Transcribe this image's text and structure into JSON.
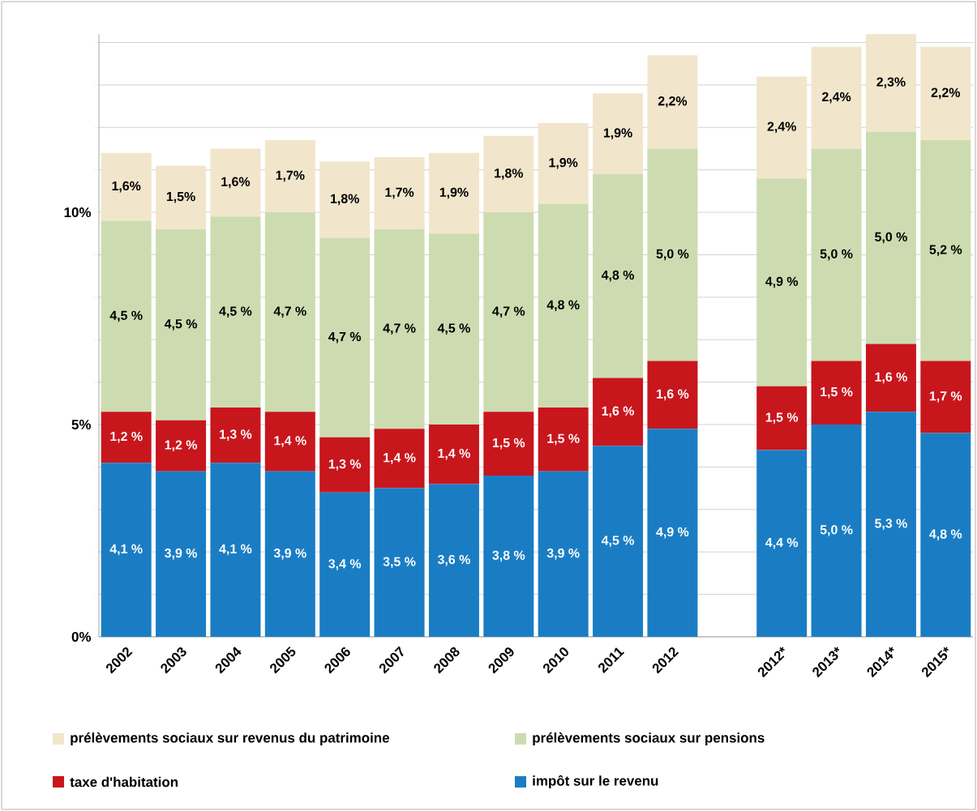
{
  "chart_data": {
    "type": "bar",
    "stacked": true,
    "categories": [
      "2002",
      "2003",
      "2004",
      "2005",
      "2006",
      "2007",
      "2008",
      "2009",
      "2010",
      "2011",
      "2012",
      null,
      "2012*",
      "2013*",
      "2014*",
      "2015*"
    ],
    "series": [
      {
        "name": "impôt sur le revenu",
        "color": "#1a7dc4",
        "values": [
          4.1,
          3.9,
          4.1,
          3.9,
          3.4,
          3.5,
          3.6,
          3.8,
          3.9,
          4.5,
          4.9,
          null,
          4.4,
          5.0,
          5.3,
          4.8
        ],
        "value_labels": [
          "4,1 %",
          "3,9 %",
          "4,1 %",
          "3,9 %",
          "3,4 %",
          "3,5 %",
          "3,6 %",
          "3,8 %",
          "3,9 %",
          "4,5 %",
          "4,9 %",
          null,
          "4,4 %",
          "5,0 %",
          "5,3 %",
          "4,8 %"
        ]
      },
      {
        "name": "taxe d'habitation",
        "color": "#c8161d",
        "values": [
          1.2,
          1.2,
          1.3,
          1.4,
          1.3,
          1.4,
          1.4,
          1.5,
          1.5,
          1.6,
          1.6,
          null,
          1.5,
          1.5,
          1.6,
          1.7
        ],
        "value_labels": [
          "1,2 %",
          "1,2 %",
          "1,3 %",
          "1,4 %",
          "1,3 %",
          "1,4 %",
          "1,4 %",
          "1,5 %",
          "1,5 %",
          "1,6 %",
          "1,6 %",
          null,
          "1,5 %",
          "1,5 %",
          "1,6 %",
          "1,7 %"
        ]
      },
      {
        "name": "prélèvements sociaux sur pensions",
        "color": "#cddcb0",
        "values": [
          4.5,
          4.5,
          4.5,
          4.7,
          4.7,
          4.7,
          4.5,
          4.7,
          4.8,
          4.8,
          5.0,
          null,
          4.9,
          5.0,
          5.0,
          5.2
        ],
        "value_labels": [
          "4,5 %",
          "4,5 %",
          "4,5 %",
          "4,7 %",
          "4,7 %",
          "4,7 %",
          "4,5 %",
          "4,7 %",
          "4,8 %",
          "4,8 %",
          "5,0 %",
          null,
          "4,9 %",
          "5,0 %",
          "5,0 %",
          "5,2 %"
        ]
      },
      {
        "name": "prélèvements sociaux sur revenus du patrimoine",
        "color": "#f1e6cc",
        "values": [
          1.6,
          1.5,
          1.6,
          1.7,
          1.8,
          1.7,
          1.9,
          1.8,
          1.9,
          1.9,
          2.2,
          null,
          2.4,
          2.4,
          2.3,
          2.2
        ],
        "value_labels": [
          "1,6%",
          "1,5%",
          "1,6%",
          "1,7%",
          "1,8%",
          "1,7%",
          "1,9%",
          "1,8%",
          "1,9%",
          "1,9%",
          "2,2%",
          null,
          "2,4%",
          "2,4%",
          "2,3%",
          "2,2%"
        ]
      }
    ],
    "ylim": [
      0,
      14.2
    ],
    "yticks": [
      {
        "value": 0,
        "label": "0%"
      },
      {
        "value": 1,
        "label": null
      },
      {
        "value": 2,
        "label": null
      },
      {
        "value": 3,
        "label": null
      },
      {
        "value": 4,
        "label": null
      },
      {
        "value": 5,
        "label": "5%"
      },
      {
        "value": 6,
        "label": null
      },
      {
        "value": 7,
        "label": null
      },
      {
        "value": 8,
        "label": null
      },
      {
        "value": 9,
        "label": null
      },
      {
        "value": 10,
        "label": "10%"
      },
      {
        "value": 11,
        "label": null
      },
      {
        "value": 12,
        "label": null
      },
      {
        "value": 13,
        "label": null
      },
      {
        "value": 14,
        "label": null
      }
    ],
    "grid": "y",
    "legend": "bottom"
  }
}
